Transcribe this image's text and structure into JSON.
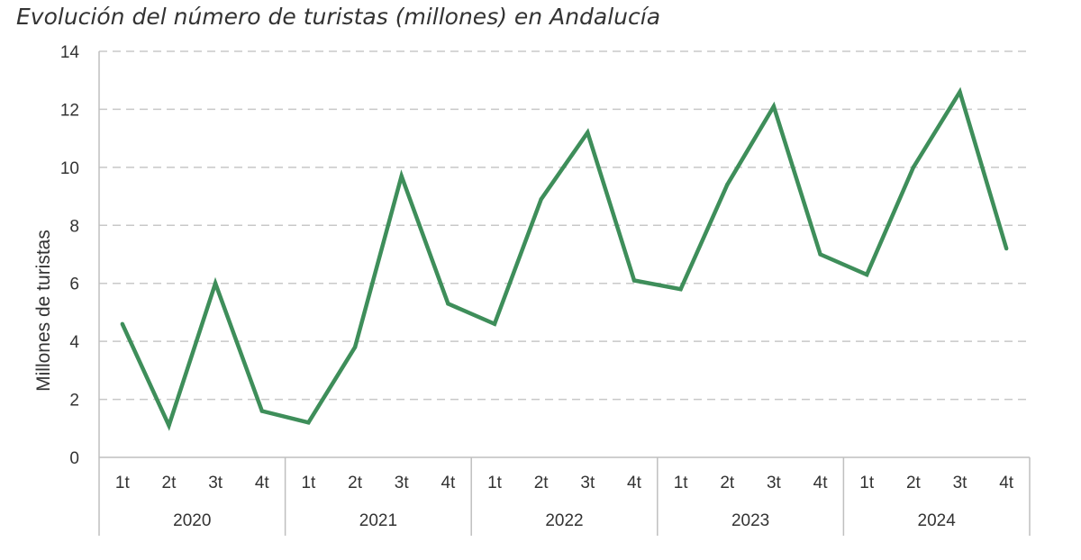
{
  "chart_data": {
    "type": "line",
    "title": "Evolución del número de turistas (millones) en Andalucía",
    "xlabel": "",
    "ylabel": "Millones de turistas",
    "ylim": [
      0,
      14
    ],
    "yticks": [
      "0",
      "2",
      "4",
      "6",
      "8",
      "10",
      "12",
      "14"
    ],
    "grid": true,
    "legend": "none",
    "color": "#3e8e5a",
    "groups": [
      {
        "label": "2020",
        "quarters": [
          "1t",
          "2t",
          "3t",
          "4t"
        ]
      },
      {
        "label": "2021",
        "quarters": [
          "1t",
          "2t",
          "3t",
          "4t"
        ]
      },
      {
        "label": "2022",
        "quarters": [
          "1t",
          "2t",
          "3t",
          "4t"
        ]
      },
      {
        "label": "2023",
        "quarters": [
          "1t",
          "2t",
          "3t",
          "4t"
        ]
      },
      {
        "label": "2024",
        "quarters": [
          "1t",
          "2t",
          "3t",
          "4t"
        ]
      }
    ],
    "series": [
      {
        "values": [
          4.6,
          1.1,
          6.0,
          1.6,
          1.2,
          3.8,
          9.7,
          5.3,
          4.6,
          8.9,
          11.2,
          6.1,
          5.8,
          9.4,
          12.1,
          7.0,
          6.3,
          10.0,
          12.6,
          7.2
        ]
      }
    ]
  }
}
